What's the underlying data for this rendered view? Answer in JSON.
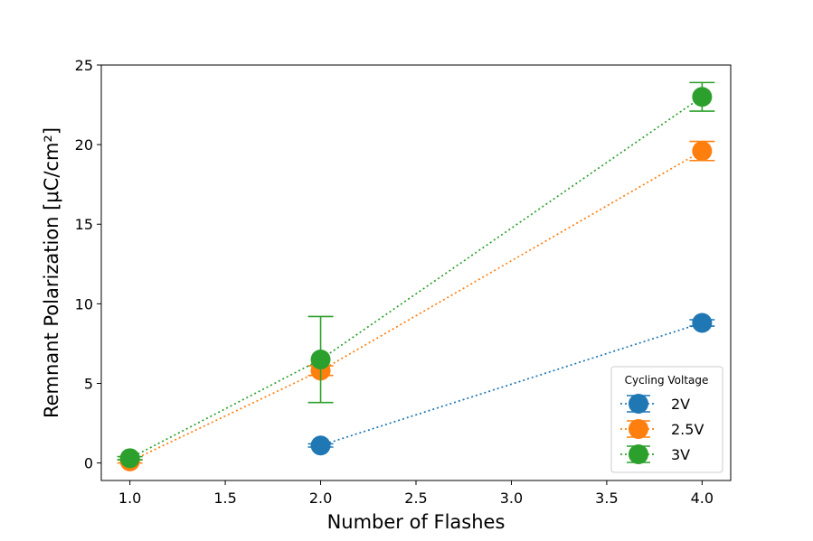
{
  "chart_data": {
    "type": "line",
    "xlabel": "Number of Flashes",
    "ylabel": "Remnant Polarization [μC/cm²]",
    "xlim": [
      0.85,
      4.15
    ],
    "ylim": [
      -1.1,
      25.0
    ],
    "xticks": [
      "1.0",
      "1.5",
      "2.0",
      "2.5",
      "3.0",
      "3.5",
      "4.0"
    ],
    "xtick_values": [
      1.0,
      1.5,
      2.0,
      2.5,
      3.0,
      3.5,
      4.0
    ],
    "yticks": [
      "0",
      "5",
      "10",
      "15",
      "20",
      "25"
    ],
    "ytick_values": [
      0,
      5,
      10,
      15,
      20,
      25
    ],
    "grid": false,
    "line_style": "dotted",
    "marker": "circle",
    "legend": {
      "title": "Cycling Voltage",
      "position": "lower-right"
    },
    "series": [
      {
        "name": "2V",
        "color": "#1f77b4",
        "x": [
          2,
          4
        ],
        "y": [
          1.1,
          8.8
        ],
        "yerr": [
          0.1,
          0.2
        ]
      },
      {
        "name": "2.5V",
        "color": "#ff7f0e",
        "x": [
          1,
          2,
          4
        ],
        "y": [
          0.1,
          5.8,
          19.6
        ],
        "yerr": [
          0.1,
          0.3,
          0.6
        ]
      },
      {
        "name": "3V",
        "color": "#2ca02c",
        "x": [
          1,
          2,
          4
        ],
        "y": [
          0.3,
          6.5,
          23.0
        ],
        "yerr": [
          0.1,
          2.7,
          0.9
        ]
      }
    ]
  }
}
